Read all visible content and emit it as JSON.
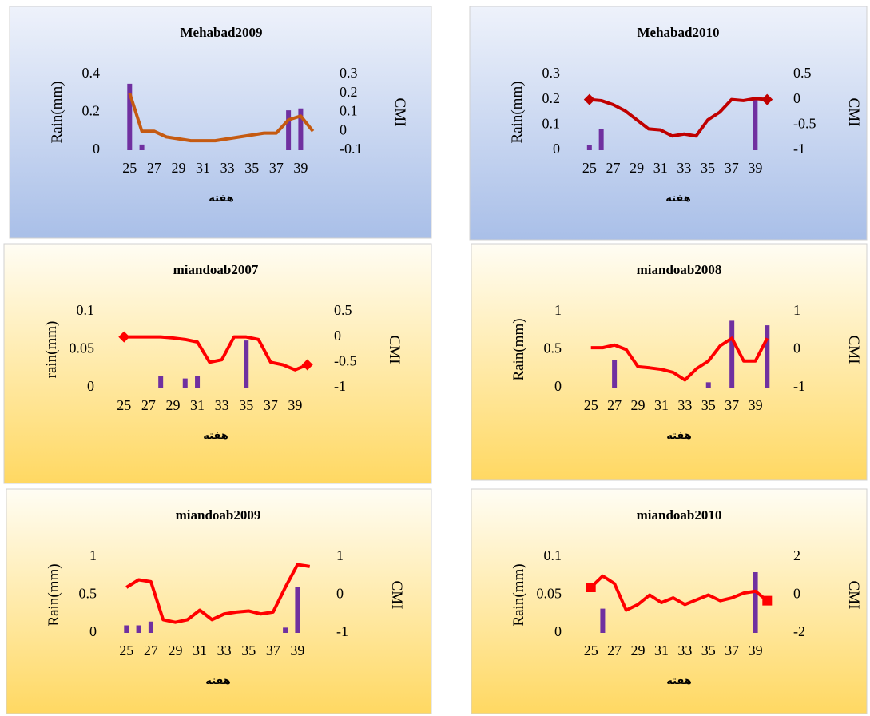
{
  "chart_data": [
    {
      "type": "combo",
      "title": "Mehabad2009",
      "y_label": "Rain(mm)",
      "y2_label": "CMI",
      "x_label": "هفته",
      "x": [
        25,
        26,
        27,
        28,
        29,
        30,
        31,
        32,
        33,
        34,
        35,
        36,
        37,
        38,
        39,
        40
      ],
      "xlim": [
        24,
        41
      ],
      "xticks": [
        25,
        27,
        29,
        31,
        33,
        35,
        37,
        39
      ],
      "ylim": [
        0,
        0.4
      ],
      "yticks": [
        0,
        0.2,
        0.4
      ],
      "y2lim": [
        -0.1,
        0.3
      ],
      "y2ticks": [
        -0.1,
        0,
        0.1,
        0.2,
        0.3
      ],
      "series": [
        {
          "type": "bar",
          "color": "#7030a0",
          "values": [
            0.35,
            0.03,
            0,
            0,
            0,
            0,
            0,
            0,
            0,
            0,
            0,
            0,
            0,
            0.21,
            0.22,
            0
          ]
        },
        {
          "type": "line",
          "axis": "y2",
          "color": "#c55a11",
          "values": [
            0.2,
            0.0,
            0.0,
            -0.03,
            -0.04,
            -0.05,
            -0.05,
            -0.05,
            -0.04,
            -0.03,
            -0.02,
            -0.01,
            -0.01,
            0.06,
            0.08,
            0.0
          ]
        }
      ]
    },
    {
      "type": "combo",
      "title": "Mehabad2010",
      "y_label": "Rain(mm)",
      "y2_label": "CMI",
      "x_label": "هفته",
      "x": [
        25,
        26,
        27,
        28,
        29,
        30,
        31,
        32,
        33,
        34,
        35,
        36,
        37,
        38,
        39,
        40
      ],
      "xlim": [
        24,
        41
      ],
      "xticks": [
        25,
        27,
        29,
        31,
        33,
        35,
        37,
        39
      ],
      "ylim": [
        0,
        0.3
      ],
      "yticks": [
        0,
        0.1,
        0.2,
        0.3
      ],
      "y2lim": [
        -1,
        0.5
      ],
      "y2ticks": [
        -1,
        -0.5,
        0,
        0.5
      ],
      "series": [
        {
          "type": "bar",
          "color": "#7030a0",
          "values": [
            0.02,
            0.085,
            0,
            0,
            0,
            0,
            0,
            0,
            0,
            0,
            0,
            0,
            0,
            0,
            0.2,
            0
          ]
        },
        {
          "type": "line",
          "axis": "y2",
          "color": "#c00000",
          "marker": "diamond",
          "values": [
            0,
            -0.02,
            -0.1,
            -0.22,
            -0.4,
            -0.58,
            -0.6,
            -0.72,
            -0.68,
            -0.72,
            -0.4,
            -0.25,
            0.0,
            -0.02,
            0.02,
            0
          ]
        }
      ]
    },
    {
      "type": "combo",
      "title": "miandoab2007",
      "y_label": "rain(mm)",
      "y2_label": "CMI",
      "x_label": "هفته",
      "x": [
        25,
        26,
        27,
        28,
        29,
        30,
        31,
        32,
        33,
        34,
        35,
        36,
        37,
        38,
        39,
        40
      ],
      "xlim": [
        24,
        41
      ],
      "xticks": [
        25,
        27,
        29,
        31,
        33,
        35,
        37,
        39
      ],
      "ylim": [
        0,
        0.1
      ],
      "yticks": [
        0,
        0.05,
        0.1
      ],
      "y2lim": [
        -1,
        0.5
      ],
      "y2ticks": [
        -1,
        -0.5,
        0,
        0.5
      ],
      "series": [
        {
          "type": "bar",
          "color": "#7030a0",
          "values": [
            0,
            0,
            0,
            0.015,
            0,
            0.012,
            0.015,
            0,
            0,
            0,
            0.062,
            0,
            0,
            0,
            0,
            0
          ]
        },
        {
          "type": "line",
          "axis": "y2",
          "color": "#ff0000",
          "marker": "diamond",
          "values": [
            0,
            0,
            0,
            0,
            -0.02,
            -0.05,
            -0.1,
            -0.5,
            -0.45,
            0,
            0,
            -0.05,
            -0.5,
            -0.55,
            -0.65,
            -0.55
          ]
        }
      ]
    },
    {
      "type": "combo",
      "title": "miandoab2008",
      "y_label": "Rain(mm)",
      "y2_label": "CMI",
      "x_label": "هفته",
      "x": [
        25,
        26,
        27,
        28,
        29,
        30,
        31,
        32,
        33,
        34,
        35,
        36,
        37,
        38,
        39,
        40
      ],
      "xlim": [
        24,
        41
      ],
      "xticks": [
        25,
        27,
        29,
        31,
        33,
        35,
        37,
        39
      ],
      "ylim": [
        0,
        1
      ],
      "yticks": [
        0,
        0.5,
        1
      ],
      "y2lim": [
        -1,
        1
      ],
      "y2ticks": [
        -1,
        0,
        1
      ],
      "series": [
        {
          "type": "bar",
          "color": "#7030a0",
          "values": [
            0,
            0,
            0.36,
            0,
            0,
            0,
            0,
            0,
            0,
            0,
            0.07,
            0,
            0.88,
            0,
            0,
            0.82
          ]
        },
        {
          "type": "line",
          "axis": "y2",
          "color": "#ff0000",
          "values": [
            0.05,
            0.05,
            0.12,
            0.0,
            -0.45,
            -0.48,
            -0.52,
            -0.6,
            -0.8,
            -0.5,
            -0.3,
            0.1,
            0.3,
            -0.3,
            -0.3,
            0.3
          ]
        }
      ]
    },
    {
      "type": "combo",
      "title": "miandoab2009",
      "y_label": "Rain(mm)",
      "y2_label": "CMI",
      "x_label": "هفته",
      "x": [
        25,
        26,
        27,
        28,
        29,
        30,
        31,
        32,
        33,
        34,
        35,
        36,
        37,
        38,
        39,
        40
      ],
      "xlim": [
        24,
        41
      ],
      "xticks": [
        25,
        27,
        29,
        31,
        33,
        35,
        37,
        39
      ],
      "ylim": [
        0,
        1
      ],
      "yticks": [
        0,
        0.5,
        1
      ],
      "y2lim": [
        -1,
        1
      ],
      "y2ticks": [
        -1,
        0,
        1
      ],
      "series": [
        {
          "type": "bar",
          "color": "#7030a0",
          "values": [
            0.1,
            0.1,
            0.15,
            0,
            0,
            0,
            0,
            0,
            0,
            0,
            0,
            0,
            0,
            0.07,
            0.6,
            0
          ]
        },
        {
          "type": "line",
          "axis": "y2",
          "color": "#ff0000",
          "values": [
            0.2,
            0.4,
            0.35,
            -0.65,
            -0.72,
            -0.65,
            -0.4,
            -0.65,
            -0.5,
            -0.45,
            -0.42,
            -0.5,
            -0.45,
            0.2,
            0.8,
            0.75
          ]
        }
      ]
    },
    {
      "type": "combo",
      "title": "miandoab2010",
      "y_label": "Rain(mm)",
      "y2_label": "CMI",
      "x_label": "هفته",
      "x": [
        25,
        26,
        27,
        28,
        29,
        30,
        31,
        32,
        33,
        34,
        35,
        36,
        37,
        38,
        39,
        40
      ],
      "xlim": [
        24,
        41
      ],
      "xticks": [
        25,
        27,
        29,
        31,
        33,
        35,
        37,
        39
      ],
      "ylim": [
        0,
        0.1
      ],
      "yticks": [
        0,
        0.05,
        0.1
      ],
      "y2lim": [
        -2,
        2
      ],
      "y2ticks": [
        -2,
        0,
        2
      ],
      "series": [
        {
          "type": "bar",
          "color": "#7030a0",
          "values": [
            0,
            0.032,
            0,
            0,
            0,
            0,
            0,
            0,
            0,
            0,
            0,
            0,
            0,
            0,
            0.08,
            0
          ]
        },
        {
          "type": "line",
          "axis": "y2",
          "color": "#ff0000",
          "marker": "square",
          "values": [
            0.4,
            1.0,
            0.6,
            -0.8,
            -0.5,
            0,
            -0.4,
            -0.15,
            -0.5,
            -0.25,
            0,
            -0.3,
            -0.15,
            0.1,
            0.2,
            -0.3
          ]
        }
      ]
    }
  ]
}
